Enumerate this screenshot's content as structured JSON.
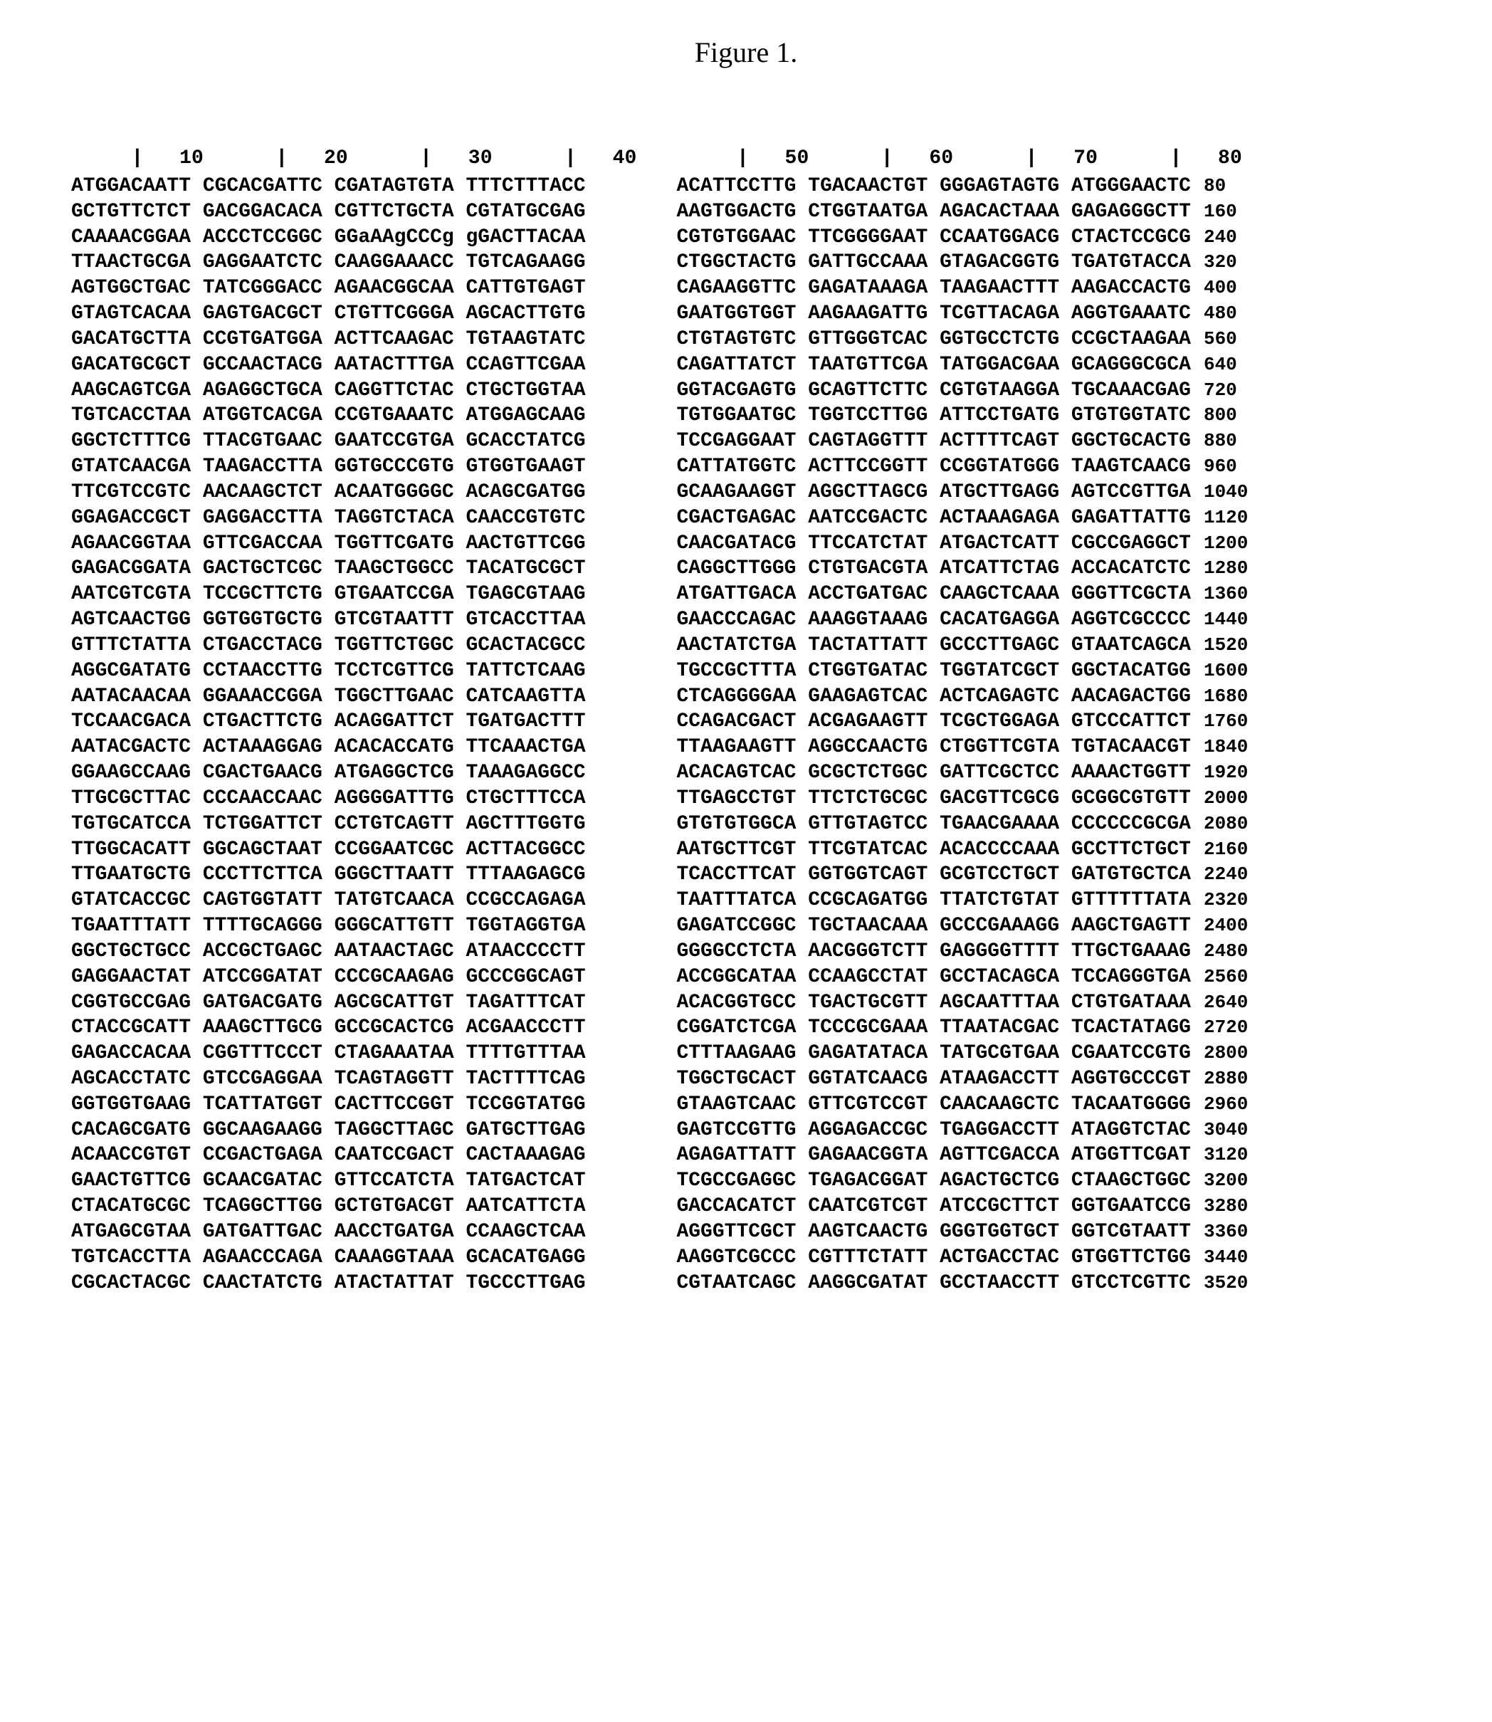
{
  "title": "Figure 1.",
  "ruler_left": "     |   10      |   20      |   30      |   40",
  "ruler_right": "     |   50      |   60      |   70      |   80",
  "row_step": 80,
  "rows": [
    {
      "left": [
        "ATGGACAATT",
        "CGCACGATTC",
        "CGATAGTGTA",
        "TTTCTTTACC"
      ],
      "right": [
        "ACATTCCTTG",
        "TGACAACTGT",
        "GGGAGTAGTG",
        "ATGGGAACTC"
      ]
    },
    {
      "left": [
        "GCTGTTCTCT",
        "GACGGACACA",
        "CGTTCTGCTA",
        "CGTATGCGAG"
      ],
      "right": [
        "AAGTGGACTG",
        "CTGGTAATGA",
        "AGACACTAAA",
        "GAGAGGGCTT"
      ]
    },
    {
      "left": [
        "CAAAACGGAA",
        "ACCCTCCGGC",
        "GGaAAgCCCg",
        "gGACTTACAA"
      ],
      "right": [
        "CGTGTGGAAC",
        "TTCGGGGAAT",
        "CCAATGGACG",
        "CTACTCCGCG"
      ]
    },
    {
      "left": [
        "TTAACTGCGA",
        "GAGGAATCTC",
        "CAAGGAAACC",
        "TGTCAGAAGG"
      ],
      "right": [
        "CTGGCTACTG",
        "GATTGCCAAA",
        "GTAGACGGTG",
        "TGATGTACCA"
      ]
    },
    {
      "left": [
        "AGTGGCTGAC",
        "TATCGGGACC",
        "AGAACGGCAA",
        "CATTGTGAGT"
      ],
      "right": [
        "CAGAAGGTTC",
        "GAGATAAAGA",
        "TAAGAACTTT",
        "AAGACCACTG"
      ]
    },
    {
      "left": [
        "GTAGTCACAA",
        "GAGTGACGCT",
        "CTGTTCGGGA",
        "AGCACTTGTG"
      ],
      "right": [
        "GAATGGTGGT",
        "AAGAAGATTG",
        "TCGTTACAGA",
        "AGGTGAAATC"
      ]
    },
    {
      "left": [
        "GACATGCTTA",
        "CCGTGATGGA",
        "ACTTCAAGAC",
        "TGTAAGTATC"
      ],
      "right": [
        "CTGTAGTGTC",
        "GTTGGGTCAC",
        "GGTGCCTCTG",
        "CCGCTAAGAA"
      ]
    },
    {
      "left": [
        "GACATGCGCT",
        "GCCAACTACG",
        "AATACTTTGA",
        "CCAGTTCGAA"
      ],
      "right": [
        "CAGATTATCT",
        "TAATGTTCGA",
        "TATGGACGAA",
        "GCAGGGCGCA"
      ]
    },
    {
      "left": [
        "AAGCAGTCGA",
        "AGAGGCTGCA",
        "CAGGTTCTAC",
        "CTGCTGGTAA"
      ],
      "right": [
        "GGTACGAGTG",
        "GCAGTTCTTC",
        "CGTGTAAGGA",
        "TGCAAACGAG"
      ]
    },
    {
      "left": [
        "TGTCACCTAA",
        "ATGGTCACGA",
        "CCGTGAAATC",
        "ATGGAGCAAG"
      ],
      "right": [
        "TGTGGAATGC",
        "TGGTCCTTGG",
        "ATTCCTGATG",
        "GTGTGGTATC"
      ]
    },
    {
      "left": [
        "GGCTCTTTCG",
        "TTACGTGAAC",
        "GAATCCGTGA",
        "GCACCTATCG"
      ],
      "right": [
        "TCCGAGGAAT",
        "CAGTAGGTTT",
        "ACTTTTCAGT",
        "GGCTGCACTG"
      ]
    },
    {
      "left": [
        "GTATCAACGA",
        "TAAGACCTTA",
        "GGTGCCCGTG",
        "GTGGTGAAGT"
      ],
      "right": [
        "CATTATGGTC",
        "ACTTCCGGTT",
        "CCGGTATGGG",
        "TAAGTCAACG"
      ]
    },
    {
      "left": [
        "TTCGTCCGTC",
        "AACAAGCTCT",
        "ACAATGGGGC",
        "ACAGCGATGG"
      ],
      "right": [
        "GCAAGAAGGT",
        "AGGCTTAGCG",
        "ATGCTTGAGG",
        "AGTCCGTTGA"
      ]
    },
    {
      "left": [
        "GGAGACCGCT",
        "GAGGACCTTA",
        "TAGGTCTACA",
        "CAACCGTGTC"
      ],
      "right": [
        "CGACTGAGAC",
        "AATCCGACTC",
        "ACTAAAGAGA",
        "GAGATTATTG"
      ]
    },
    {
      "left": [
        "AGAACGGTAA",
        "GTTCGACCAA",
        "TGGTTCGATG",
        "AACTGTTCGG"
      ],
      "right": [
        "CAACGATACG",
        "TTCCATCTAT",
        "ATGACTCATT",
        "CGCCGAGGCT"
      ]
    },
    {
      "left": [
        "GAGACGGATA",
        "GACTGCTCGC",
        "TAAGCTGGCC",
        "TACATGCGCT"
      ],
      "right": [
        "CAGGCTTGGG",
        "CTGTGACGTA",
        "ATCATTCTAG",
        "ACCACATCTC"
      ]
    },
    {
      "left": [
        "AATCGTCGTA",
        "TCCGCTTCTG",
        "GTGAATCCGA",
        "TGAGCGTAAG"
      ],
      "right": [
        "ATGATTGACA",
        "ACCTGATGAC",
        "CAAGCTCAAA",
        "GGGTTCGCTA"
      ]
    },
    {
      "left": [
        "AGTCAACTGG",
        "GGTGGTGCTG",
        "GTCGTAATTT",
        "GTCACCTTAA"
      ],
      "right": [
        "GAACCCAGAC",
        "AAAGGTAAAG",
        "CACATGAGGA",
        "AGGTCGCCCC"
      ]
    },
    {
      "left": [
        "GTTTCTATTA",
        "CTGACCTACG",
        "TGGTTCTGGC",
        "GCACTACGCC"
      ],
      "right": [
        "AACTATCTGA",
        "TACTATTATT",
        "GCCCTTGAGC",
        "GTAATCAGCA"
      ]
    },
    {
      "left": [
        "AGGCGATATG",
        "CCTAACCTTG",
        "TCCTCGTTCG",
        "TATTCTCAAG"
      ],
      "right": [
        "TGCCGCTTTA",
        "CTGGTGATAC",
        "TGGTATCGCT",
        "GGCTACATGG"
      ]
    },
    {
      "left": [
        "AATACAACAA",
        "GGAAACCGGA",
        "TGGCTTGAAC",
        "CATCAAGTTA"
      ],
      "right": [
        "CTCAGGGGAA",
        "GAAGAGTCAC",
        "ACTCAGAGTC",
        "AACAGACTGG"
      ]
    },
    {
      "left": [
        "TCCAACGACA",
        "CTGACTTCTG",
        "ACAGGATTCT",
        "TGATGACTTT"
      ],
      "right": [
        "CCAGACGACT",
        "ACGAGAAGTT",
        "TCGCTGGAGA",
        "GTCCCATTCT"
      ]
    },
    {
      "left": [
        "AATACGACTC",
        "ACTAAAGGAG",
        "ACACACCATG",
        "TTCAAACTGA"
      ],
      "right": [
        "TTAAGAAGTT",
        "AGGCCAACTG",
        "CTGGTTCGTA",
        "TGTACAACGT"
      ]
    },
    {
      "left": [
        "GGAAGCCAAG",
        "CGACTGAACG",
        "ATGAGGCTCG",
        "TAAAGAGGCC"
      ],
      "right": [
        "ACACAGTCAC",
        "GCGCTCTGGC",
        "GATTCGCTCC",
        "AAAACTGGTT"
      ]
    },
    {
      "left": [
        "TTGCGCTTAC",
        "CCCAACCAAC",
        "AGGGGATTTG",
        "CTGCTTTCCA"
      ],
      "right": [
        "TTGAGCCTGT",
        "TTCTCTGCGC",
        "GACGTTCGCG",
        "GCGGCGTGTT"
      ]
    },
    {
      "left": [
        "TGTGCATCCA",
        "TCTGGATTCT",
        "CCTGTCAGTT",
        "AGCTTTGGTG"
      ],
      "right": [
        "GTGTGTGGCA",
        "GTTGTAGTCC",
        "TGAACGAAAA",
        "CCCCCCGCGA"
      ]
    },
    {
      "left": [
        "TTGGCACATT",
        "GGCAGCTAAT",
        "CCGGAATCGC",
        "ACTTACGGCC"
      ],
      "right": [
        "AATGCTTCGT",
        "TTCGTATCAC",
        "ACACCCCAAA",
        "GCCTTCTGCT"
      ]
    },
    {
      "left": [
        "TTGAATGCTG",
        "CCCTTCTTCA",
        "GGGCTTAATT",
        "TTTAAGAGCG"
      ],
      "right": [
        "TCACCTTCAT",
        "GGTGGTCAGT",
        "GCGTCCTGCT",
        "GATGTGCTCA"
      ]
    },
    {
      "left": [
        "GTATCACCGC",
        "CAGTGGTATT",
        "TATGTCAACA",
        "CCGCCAGAGA"
      ],
      "right": [
        "TAATTTATCA",
        "CCGCAGATGG",
        "TTATCTGTAT",
        "GTTTTTTATA"
      ]
    },
    {
      "left": [
        "TGAATTTATT",
        "TTTTGCAGGG",
        "GGGCATTGTT",
        "TGGTAGGTGA"
      ],
      "right": [
        "GAGATCCGGC",
        "TGCTAACAAA",
        "GCCCGAAAGG",
        "AAGCTGAGTT"
      ]
    },
    {
      "left": [
        "GGCTGCTGCC",
        "ACCGCTGAGC",
        "AATAACTAGC",
        "ATAACCCCTT"
      ],
      "right": [
        "GGGGCCTCTA",
        "AACGGGTCTT",
        "GAGGGGTTTT",
        "TTGCTGAAAG"
      ]
    },
    {
      "left": [
        "GAGGAACTAT",
        "ATCCGGATAT",
        "CCCGCAAGAG",
        "GCCCGGCAGT"
      ],
      "right": [
        "ACCGGCATAA",
        "CCAAGCCTAT",
        "GCCTACAGCA",
        "TCCAGGGTGA"
      ]
    },
    {
      "left": [
        "CGGTGCCGAG",
        "GATGACGATG",
        "AGCGCATTGT",
        "TAGATTTCAT"
      ],
      "right": [
        "ACACGGTGCC",
        "TGACTGCGTT",
        "AGCAATTTAA",
        "CTGTGATAAA"
      ]
    },
    {
      "left": [
        "CTACCGCATT",
        "AAAGCTTGCG",
        "GCCGCACTCG",
        "ACGAACCCTT"
      ],
      "right": [
        "CGGATCTCGA",
        "TCCCGCGAAA",
        "TTAATACGAC",
        "TCACTATAGG"
      ]
    },
    {
      "left": [
        "GAGACCACAA",
        "CGGTTTCCCT",
        "CTAGAAATAA",
        "TTTTGTTTAA"
      ],
      "right": [
        "CTTTAAGAAG",
        "GAGATATACA",
        "TATGCGTGAA",
        "CGAATCCGTG"
      ]
    },
    {
      "left": [
        "AGCACCTATC",
        "GTCCGAGGAA",
        "TCAGTAGGTT",
        "TACTTTTCAG"
      ],
      "right": [
        "TGGCTGCACT",
        "GGTATCAACG",
        "ATAAGACCTT",
        "AGGTGCCCGT"
      ]
    },
    {
      "left": [
        "GGTGGTGAAG",
        "TCATTATGGT",
        "CACTTCCGGT",
        "TCCGGTATGG"
      ],
      "right": [
        "GTAAGTCAAC",
        "GTTCGTCCGT",
        "CAACAAGCTC",
        "TACAATGGGG"
      ]
    },
    {
      "left": [
        "CACAGCGATG",
        "GGCAAGAAGG",
        "TAGGCTTAGC",
        "GATGCTTGAG"
      ],
      "right": [
        "GAGTCCGTTG",
        "AGGAGACCGC",
        "TGAGGACCTT",
        "ATAGGTCTAC"
      ]
    },
    {
      "left": [
        "ACAACCGTGT",
        "CCGACTGAGA",
        "CAATCCGACT",
        "CACTAAAGAG"
      ],
      "right": [
        "AGAGATTATT",
        "GAGAACGGTA",
        "AGTTCGACCA",
        "ATGGTTCGAT"
      ]
    },
    {
      "left": [
        "GAACTGTTCG",
        "GCAACGATAC",
        "GTTCCATCTA",
        "TATGACTCAT"
      ],
      "right": [
        "TCGCCGAGGC",
        "TGAGACGGAT",
        "AGACTGCTCG",
        "CTAAGCTGGC"
      ]
    },
    {
      "left": [
        "CTACATGCGC",
        "TCAGGCTTGG",
        "GCTGTGACGT",
        "AATCATTCTA"
      ],
      "right": [
        "GACCACATCT",
        "CAATCGTCGT",
        "ATCCGCTTCT",
        "GGTGAATCCG"
      ]
    },
    {
      "left": [
        "ATGAGCGTAA",
        "GATGATTGAC",
        "AACCTGATGA",
        "CCAAGCTCAA"
      ],
      "right": [
        "AGGGTTCGCT",
        "AAGTCAACTG",
        "GGGTGGTGCT",
        "GGTCGTAATT"
      ]
    },
    {
      "left": [
        "TGTCACCTTA",
        "AGAACCCAGA",
        "CAAAGGTAAA",
        "GCACATGAGG"
      ],
      "right": [
        "AAGGTCGCCC",
        "CGTTTCTATT",
        "ACTGACCTAC",
        "GTGGTTCTGG"
      ]
    },
    {
      "left": [
        "CGCACTACGC",
        "CAACTATCTG",
        "ATACTATTAT",
        "TGCCCTTGAG"
      ],
      "right": [
        "CGTAATCAGC",
        "AAGGCGATAT",
        "GCCTAACCTT",
        "GTCCTCGTTC"
      ]
    }
  ]
}
